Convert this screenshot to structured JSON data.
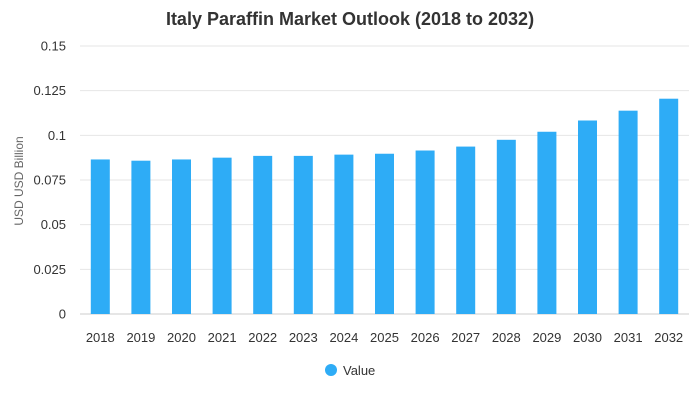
{
  "chart_data": {
    "type": "bar",
    "title": "Italy Paraffin Market Outlook (2018 to 2032)",
    "xlabel": "",
    "ylabel": "USD USD Billion",
    "categories": [
      "2018",
      "2019",
      "2020",
      "2021",
      "2022",
      "2023",
      "2024",
      "2025",
      "2026",
      "2027",
      "2028",
      "2029",
      "2030",
      "2031",
      "2032"
    ],
    "series": [
      {
        "name": "Value",
        "values": [
          0.0865,
          0.0858,
          0.0865,
          0.0875,
          0.0885,
          0.0885,
          0.0892,
          0.0897,
          0.0915,
          0.0937,
          0.0975,
          0.102,
          0.1083,
          0.1138,
          0.1205
        ]
      }
    ],
    "ylim": [
      0,
      0.15
    ],
    "yticks": [
      "0",
      "0.025",
      "0.05",
      "0.075",
      "0.1",
      "0.125",
      "0.15"
    ],
    "ytick_values": [
      0,
      0.025,
      0.05,
      0.075,
      0.1,
      0.125,
      0.15
    ],
    "grid": true,
    "legend_position": "bottom",
    "colors": {
      "bar": "#2eacf6",
      "grid": "#e6e6e6",
      "axis": "#cccccc"
    }
  }
}
